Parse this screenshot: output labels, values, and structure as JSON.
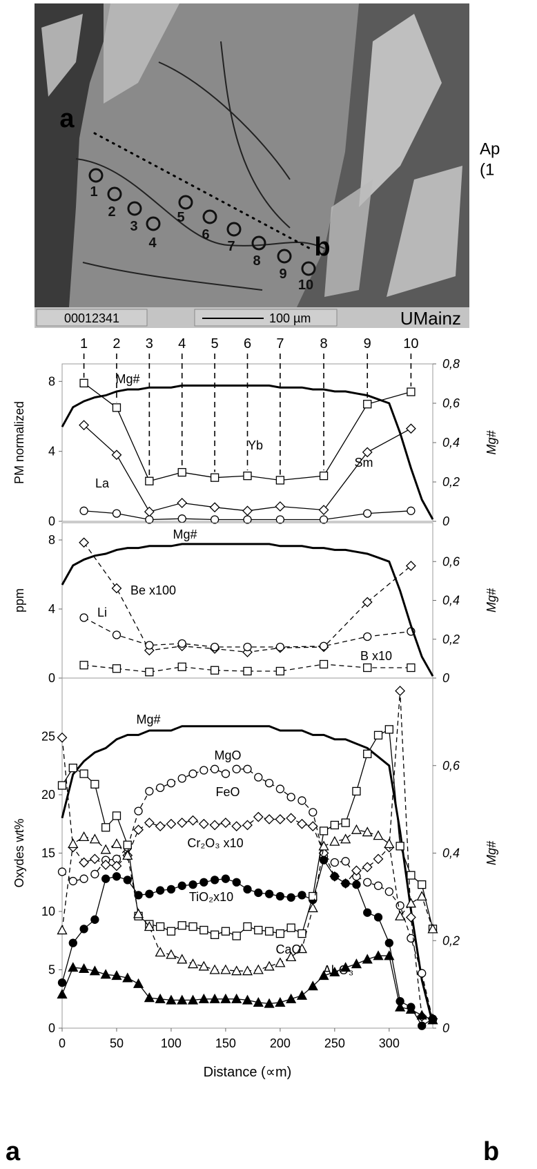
{
  "micrograph": {
    "points": [
      "a",
      "b"
    ],
    "spots": [
      "1",
      "2",
      "3",
      "4",
      "5",
      "6",
      "7",
      "8",
      "9",
      "10"
    ],
    "sample_id": "00012341",
    "scale_bar": "100 µm",
    "lab": "UMainz",
    "side_text": [
      "Ap",
      "(1"
    ]
  },
  "panel_labels": [
    "a",
    "b"
  ],
  "chart_data": [
    {
      "type": "line",
      "y_label": "PM normalized",
      "y2_label": "Mg#",
      "xlim": [
        0,
        340
      ],
      "ylim": [
        0,
        9
      ],
      "yticks": [
        0,
        4,
        8
      ],
      "y2lim": [
        0,
        0.8
      ],
      "y2ticks": [
        0,
        {
          "value": 0.2,
          "label": "0,2"
        },
        {
          "value": 0.4,
          "label": "0,4"
        },
        {
          "value": 0.6,
          "label": "0,6"
        },
        {
          "value": 0.8,
          "label": "0,8"
        }
      ],
      "spot_labels": [
        "1",
        "2",
        "3",
        "4",
        "5",
        "6",
        "7",
        "8",
        "9",
        "10"
      ],
      "x": [
        20,
        50,
        80,
        110,
        140,
        170,
        200,
        240,
        280,
        320
      ],
      "series": [
        {
          "name": "Yb",
          "color": "#000000",
          "marker": "square",
          "filled": false,
          "dash": "solid",
          "values": [
            7.9,
            6.5,
            2.3,
            2.8,
            2.5,
            2.6,
            2.35,
            2.6,
            6.7,
            7.4
          ]
        },
        {
          "name": "Sm",
          "color": "#000000",
          "marker": "diamond",
          "filled": false,
          "dash": "solid",
          "values": [
            5.5,
            3.8,
            0.55,
            1.05,
            0.8,
            0.6,
            0.85,
            0.65,
            3.95,
            5.3
          ]
        },
        {
          "name": "La",
          "color": "#000000",
          "marker": "circle",
          "filled": false,
          "dash": "solid",
          "values": [
            0.6,
            0.45,
            0.1,
            0.15,
            0.1,
            0.1,
            0.1,
            0.1,
            0.45,
            0.6
          ]
        },
        {
          "name": "Mg#",
          "color": "#000000",
          "axis": "y2",
          "marker": "none",
          "dash": "solid",
          "x": [
            0,
            10,
            20,
            30,
            40,
            50,
            60,
            70,
            80,
            90,
            100,
            110,
            120,
            130,
            140,
            150,
            160,
            170,
            180,
            190,
            200,
            210,
            220,
            230,
            240,
            250,
            260,
            270,
            280,
            290,
            300,
            310,
            320,
            330,
            340
          ],
          "values": [
            0.48,
            0.58,
            0.61,
            0.63,
            0.64,
            0.66,
            0.67,
            0.67,
            0.68,
            0.68,
            0.68,
            0.69,
            0.69,
            0.69,
            0.69,
            0.69,
            0.69,
            0.69,
            0.69,
            0.69,
            0.68,
            0.68,
            0.68,
            0.67,
            0.67,
            0.66,
            0.66,
            0.65,
            0.64,
            0.62,
            0.6,
            0.45,
            0.27,
            0.11,
            0.01
          ]
        }
      ]
    },
    {
      "type": "line",
      "y_label": "ppm",
      "y2_label": "Mg#",
      "xlim": [
        0,
        340
      ],
      "ylim": [
        0,
        9
      ],
      "yticks": [
        0,
        4,
        8
      ],
      "y2lim": [
        0,
        0.8
      ],
      "y2ticks": [
        0,
        {
          "value": 0.2,
          "label": "0,2"
        },
        {
          "value": 0.4,
          "label": "0,4"
        },
        {
          "value": 0.6,
          "label": "0,6"
        }
      ],
      "x": [
        20,
        50,
        80,
        110,
        140,
        170,
        200,
        240,
        280,
        320
      ],
      "series": [
        {
          "name": "Be x100",
          "color": "#000000",
          "marker": "diamond",
          "filled": false,
          "dash": "dashed",
          "values": [
            7.85,
            5.2,
            1.6,
            1.85,
            1.7,
            1.5,
            1.75,
            1.8,
            4.4,
            6.5
          ]
        },
        {
          "name": "Li",
          "color": "#000000",
          "marker": "circle",
          "filled": false,
          "dash": "dashed",
          "values": [
            3.5,
            2.5,
            1.9,
            2.0,
            1.8,
            1.8,
            1.8,
            1.85,
            2.4,
            2.7
          ]
        },
        {
          "name": "B x10",
          "color": "#000000",
          "marker": "square",
          "filled": false,
          "dash": "dashed",
          "values": [
            0.75,
            0.55,
            0.35,
            0.65,
            0.45,
            0.4,
            0.4,
            0.8,
            0.6,
            0.6
          ]
        },
        {
          "name": "Mg#",
          "color": "#000000",
          "axis": "y2",
          "marker": "none",
          "dash": "solid",
          "x": [
            0,
            10,
            20,
            30,
            40,
            50,
            60,
            70,
            80,
            90,
            100,
            110,
            120,
            130,
            140,
            150,
            160,
            170,
            180,
            190,
            200,
            210,
            220,
            230,
            240,
            250,
            260,
            270,
            280,
            290,
            300,
            310,
            320,
            330,
            340
          ],
          "values": [
            0.48,
            0.58,
            0.61,
            0.63,
            0.64,
            0.66,
            0.67,
            0.67,
            0.68,
            0.68,
            0.68,
            0.69,
            0.69,
            0.69,
            0.69,
            0.69,
            0.69,
            0.69,
            0.69,
            0.69,
            0.68,
            0.68,
            0.68,
            0.67,
            0.67,
            0.66,
            0.66,
            0.65,
            0.64,
            0.62,
            0.6,
            0.45,
            0.27,
            0.11,
            0.01
          ]
        }
      ]
    },
    {
      "type": "line",
      "y_label": "Oxydes wt%",
      "y2_label": "Mg#",
      "x_label": "Distance (∝m)",
      "xlim": [
        0,
        340
      ],
      "xticks": [
        0,
        50,
        100,
        150,
        200,
        250,
        300
      ],
      "ylim": [
        0,
        30
      ],
      "yticks": [
        0,
        5,
        10,
        15,
        20,
        25
      ],
      "y2lim": [
        0,
        0.8
      ],
      "y2ticks": [
        0,
        {
          "value": 0.2,
          "label": "0,2"
        },
        {
          "value": 0.4,
          "label": "0,4"
        },
        {
          "value": 0.6,
          "label": "0,6"
        }
      ],
      "x": [
        0,
        10,
        20,
        30,
        40,
        50,
        60,
        70,
        80,
        90,
        100,
        110,
        120,
        130,
        140,
        150,
        160,
        170,
        180,
        190,
        200,
        210,
        220,
        230,
        240,
        250,
        260,
        270,
        280,
        290,
        300,
        310,
        320,
        330,
        340
      ],
      "series": [
        {
          "name": "Mg#",
          "color": "#000000",
          "axis": "y2",
          "marker": "none",
          "dash": "solid",
          "values": [
            0.48,
            0.58,
            0.61,
            0.63,
            0.64,
            0.66,
            0.67,
            0.67,
            0.68,
            0.68,
            0.68,
            0.69,
            0.69,
            0.69,
            0.69,
            0.69,
            0.69,
            0.69,
            0.69,
            0.69,
            0.68,
            0.68,
            0.68,
            0.67,
            0.67,
            0.66,
            0.66,
            0.65,
            0.64,
            0.62,
            0.6,
            0.45,
            0.27,
            0.11,
            0.01
          ]
        },
        {
          "name": "MgO",
          "color": "#000000",
          "marker": "circle",
          "filled": false,
          "dash": "dashed",
          "values": [
            13.4,
            12.6,
            12.8,
            13.2,
            14.4,
            14.5,
            15.5,
            18.6,
            20.3,
            20.6,
            21.0,
            21.4,
            21.8,
            22.1,
            22.2,
            21.8,
            22.2,
            22.2,
            21.5,
            21.0,
            20.5,
            19.8,
            19.5,
            18.5,
            14.7,
            14.2,
            14.3,
            13.0,
            12.5,
            12.2,
            11.7,
            10.5,
            7.7,
            4.7,
            0.7
          ]
        },
        {
          "name": "FeO",
          "color": "#000000",
          "marker": "diamond",
          "filled": false,
          "dash": "dashed",
          "values": [
            24.9,
            15.5,
            14.2,
            14.5,
            14.0,
            13.9,
            14.8,
            17.0,
            17.6,
            17.3,
            17.5,
            17.6,
            17.8,
            17.5,
            17.4,
            17.6,
            17.3,
            17.4,
            18.1,
            17.9,
            17.9,
            18.0,
            17.5,
            17.3,
            15.0,
            13.0,
            12.4,
            13.5,
            13.8,
            14.5,
            15.5,
            28.9,
            9.5,
            1.0,
            0.8
          ]
        },
        {
          "name": "Cr₂O₃ x10",
          "color": "#000000",
          "marker": "circle",
          "filled": true,
          "dash": "solid",
          "values": [
            3.9,
            7.3,
            8.5,
            9.3,
            12.8,
            13.0,
            12.7,
            11.4,
            11.5,
            11.8,
            11.9,
            12.2,
            12.3,
            12.5,
            12.7,
            12.8,
            12.5,
            11.9,
            11.6,
            11.5,
            11.3,
            11.2,
            11.4,
            11.0,
            14.4,
            13.0,
            12.4,
            12.3,
            9.9,
            9.5,
            7.3,
            2.3,
            1.8,
            0.2,
            0.8
          ]
        },
        {
          "name": "TiO₂x10",
          "color": "#000000",
          "marker": "square",
          "filled": false,
          "dash": "solid",
          "values": [
            20.8,
            22.3,
            21.8,
            20.9,
            17.2,
            18.2,
            15.7,
            9.6,
            8.9,
            8.7,
            8.3,
            8.8,
            8.7,
            8.4,
            8.0,
            8.3,
            7.9,
            8.7,
            8.4,
            8.3,
            8.1,
            8.6,
            8.1,
            11.3,
            16.9,
            17.4,
            17.6,
            20.3,
            23.5,
            25.1,
            25.6,
            15.6,
            13.1,
            12.3,
            8.5
          ]
        },
        {
          "name": "CaO",
          "color": "#000000",
          "marker": "triangle",
          "filled": false,
          "dash": "dashed",
          "values": [
            8.4,
            15.8,
            16.4,
            16.2,
            15.3,
            15.8,
            14.8,
            9.8,
            8.7,
            6.5,
            6.3,
            5.9,
            5.5,
            5.3,
            5.0,
            5.0,
            4.9,
            4.9,
            5.0,
            5.3,
            5.6,
            6.1,
            6.8,
            10.3,
            15.6,
            16.0,
            16.2,
            17.0,
            16.8,
            16.5,
            15.8,
            9.6,
            10.7,
            11.3,
            8.5
          ]
        },
        {
          "name": "Al₂O₃",
          "color": "#000000",
          "marker": "triangle",
          "filled": true,
          "dash": "solid",
          "values": [
            2.9,
            5.2,
            5.1,
            4.9,
            4.6,
            4.5,
            4.3,
            3.8,
            2.6,
            2.5,
            2.4,
            2.4,
            2.4,
            2.5,
            2.5,
            2.5,
            2.5,
            2.4,
            2.2,
            2.1,
            2.2,
            2.5,
            2.8,
            3.6,
            4.5,
            4.8,
            5.2,
            5.5,
            5.9,
            6.2,
            6.2,
            1.8,
            1.6,
            1.1,
            0.7
          ]
        }
      ]
    }
  ]
}
